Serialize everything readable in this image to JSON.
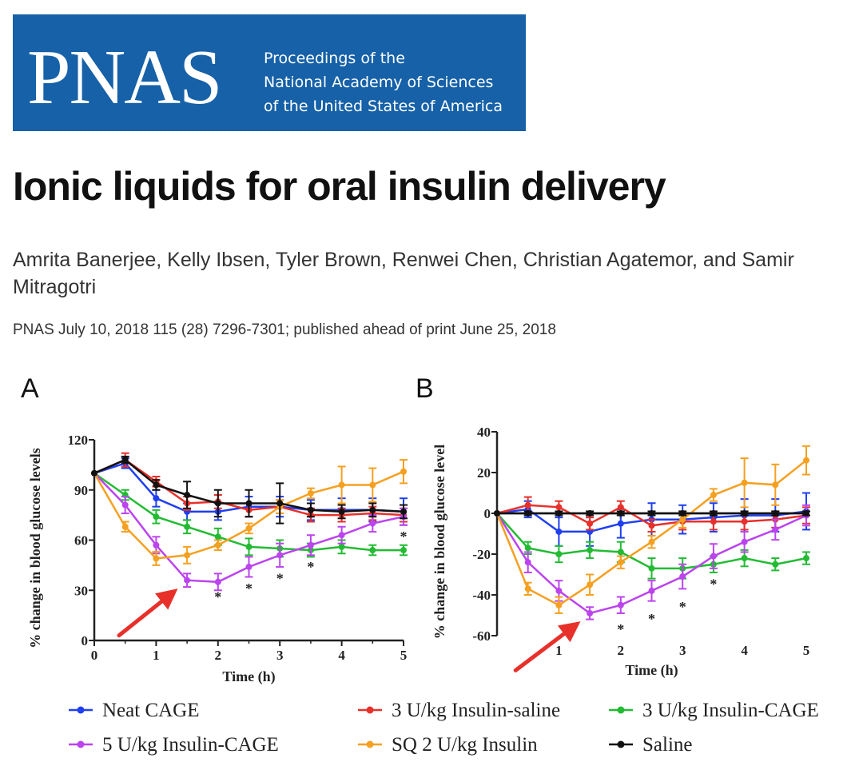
{
  "banner": {
    "logo": "PNAS",
    "tagline": [
      "Proceedings of the",
      "National Academy of Sciences",
      "of the United States of America"
    ],
    "background": "#1661a8"
  },
  "paper": {
    "title": "Ionic liquids for oral insulin delivery",
    "authors": "Amrita Banerjee, Kelly Ibsen, Tyler Brown, Renwei Chen, Christian Agatemor, and Samir Mitragotri",
    "citation": "PNAS July 10, 2018 115 (28) 7296-7301; published ahead of print June 25, 2018"
  },
  "chart_data": [
    {
      "type": "line",
      "panel": "A",
      "xlabel": "Time (h)",
      "ylabel": "% change in blood glucose levels",
      "xlim": [
        0,
        5
      ],
      "ylim": [
        0,
        120
      ],
      "xticks": [
        "0",
        "1",
        "2",
        "3",
        "4",
        "5"
      ],
      "yticks": [
        "0",
        "30",
        "60",
        "90",
        "120"
      ],
      "series": [
        {
          "name": "Neat CAGE",
          "color": "#1f3ff0",
          "x": [
            0,
            0.5,
            1,
            1.5,
            2,
            2.5,
            3,
            3.5,
            4,
            4.5,
            5
          ],
          "values": [
            100,
            106,
            85,
            77,
            77,
            80,
            80,
            78,
            78,
            78,
            77
          ],
          "errors": [
            0,
            3,
            5,
            5,
            5,
            6,
            6,
            6,
            7,
            7,
            8
          ]
        },
        {
          "name": "3 U/kg Insulin-saline",
          "color": "#e8302a",
          "x": [
            0,
            0.5,
            1,
            1.5,
            2,
            2.5,
            3,
            3.5,
            4,
            4.5,
            5
          ],
          "values": [
            100,
            108,
            95,
            82,
            83,
            78,
            80,
            75,
            75,
            76,
            75
          ],
          "errors": [
            0,
            4,
            3,
            4,
            4,
            4,
            4,
            4,
            4,
            4,
            4
          ]
        },
        {
          "name": "3 U/kg Insulin-CAGE",
          "color": "#22bb33",
          "x": [
            0,
            0.5,
            1,
            1.5,
            2,
            2.5,
            3,
            3.5,
            4,
            4.5,
            5
          ],
          "values": [
            100,
            87,
            74,
            68,
            62,
            56,
            55,
            54,
            56,
            54,
            54
          ],
          "errors": [
            0,
            3,
            4,
            4,
            5,
            5,
            5,
            4,
            4,
            3,
            3
          ]
        },
        {
          "name": "5 U/kg Insulin-CAGE",
          "color": "#bb44ee",
          "x": [
            0,
            0.5,
            1,
            1.5,
            2,
            2.5,
            3,
            3.5,
            4,
            4.5,
            5
          ],
          "values": [
            100,
            81,
            57,
            36,
            35,
            44,
            51,
            57,
            63,
            70,
            74
          ],
          "errors": [
            0,
            5,
            5,
            4,
            5,
            6,
            7,
            6,
            5,
            5,
            5
          ]
        },
        {
          "name": "SQ 2 U/kg Insulin",
          "color": "#f5a020",
          "x": [
            0,
            0.5,
            1,
            1.5,
            2,
            2.5,
            3,
            3.5,
            4,
            4.5,
            5
          ],
          "values": [
            100,
            68,
            49,
            51,
            57,
            67,
            80,
            88,
            93,
            93,
            101
          ],
          "errors": [
            0,
            3,
            4,
            5,
            3,
            3,
            4,
            3,
            11,
            10,
            7
          ]
        },
        {
          "name": "Saline",
          "color": "#111111",
          "x": [
            0,
            0.5,
            1,
            1.5,
            2,
            2.5,
            3,
            3.5,
            4,
            4.5,
            5
          ],
          "values": [
            100,
            108,
            93,
            87,
            82,
            82,
            82,
            78,
            77,
            78,
            77
          ],
          "errors": [
            0,
            2,
            3,
            8,
            8,
            8,
            12,
            4,
            4,
            4,
            4
          ]
        }
      ],
      "annotations": [
        {
          "text": "*",
          "x": 2,
          "y": 27
        },
        {
          "text": "*",
          "x": 2.5,
          "y": 32
        },
        {
          "text": "*",
          "x": 3,
          "y": 38
        },
        {
          "text": "*",
          "x": 3.5,
          "y": 45
        },
        {
          "text": "*",
          "x": 5,
          "y": 63
        }
      ],
      "arrow": {
        "from": [
          0.4,
          3
        ],
        "to": [
          1.35,
          31
        ],
        "color": "#e8302a"
      }
    },
    {
      "type": "line",
      "panel": "B",
      "xlabel": "Time (h)",
      "ylabel": "% change in blood glucose level",
      "xlim": [
        0,
        5
      ],
      "ylim": [
        -60,
        40
      ],
      "xticks": [
        "1",
        "2",
        "3",
        "4",
        "5"
      ],
      "yticks": [
        "-60",
        "-40",
        "-20",
        "0",
        "20",
        "40"
      ],
      "series": [
        {
          "name": "Neat CAGE",
          "color": "#1f3ff0",
          "x": [
            0,
            0.5,
            1,
            1.5,
            2,
            2.5,
            3,
            3.5,
            4,
            4.5,
            5
          ],
          "values": [
            0,
            2,
            -9,
            -9,
            -5,
            -3,
            -3,
            -2,
            -1,
            -1,
            1
          ],
          "errors": [
            0,
            4,
            7,
            7,
            7,
            8,
            7,
            7,
            8,
            8,
            9
          ]
        },
        {
          "name": "3 U/kg Insulin-saline",
          "color": "#e8302a",
          "x": [
            0,
            0.5,
            1,
            1.5,
            2,
            2.5,
            3,
            3.5,
            4,
            4.5,
            5
          ],
          "values": [
            0,
            4,
            3,
            -5,
            3,
            -6,
            -4,
            -4,
            -4,
            -3,
            -1
          ],
          "errors": [
            0,
            4,
            3,
            3,
            3,
            3,
            4,
            4,
            4,
            4,
            4
          ]
        },
        {
          "name": "3 U/kg Insulin-CAGE",
          "color": "#22bb33",
          "x": [
            0,
            0.5,
            1,
            1.5,
            2,
            2.5,
            3,
            3.5,
            4,
            4.5,
            5
          ],
          "values": [
            0,
            -17,
            -20,
            -18,
            -19,
            -27,
            -27,
            -25,
            -22,
            -25,
            -22
          ],
          "errors": [
            0,
            3,
            4,
            4,
            5,
            5,
            5,
            4,
            4,
            3,
            3
          ]
        },
        {
          "name": "5 U/kg Insulin-CAGE",
          "color": "#bb44ee",
          "x": [
            0,
            0.5,
            1,
            1.5,
            2,
            2.5,
            3,
            3.5,
            4,
            4.5,
            5
          ],
          "values": [
            0,
            -24,
            -38,
            -49,
            -45,
            -38,
            -31,
            -21,
            -14,
            -8,
            -1
          ],
          "errors": [
            0,
            5,
            5,
            3,
            4,
            5,
            6,
            6,
            5,
            5,
            5
          ]
        },
        {
          "name": "SQ 2 U/kg Insulin",
          "color": "#f5a020",
          "x": [
            0,
            0.5,
            1,
            1.5,
            2,
            2.5,
            3,
            3.5,
            4,
            4.5,
            5
          ],
          "values": [
            0,
            -37,
            -45,
            -35,
            -24,
            -14,
            -3,
            9,
            15,
            14,
            26
          ],
          "errors": [
            0,
            3,
            4,
            5,
            3,
            3,
            4,
            3,
            12,
            10,
            7
          ]
        },
        {
          "name": "Saline",
          "color": "#111111",
          "x": [
            0,
            0.5,
            1,
            1.5,
            2,
            2.5,
            3,
            3.5,
            4,
            4.5,
            5
          ],
          "values": [
            0,
            0,
            0,
            0,
            0,
            0,
            0,
            0,
            0,
            0,
            0
          ],
          "errors": [
            0,
            1,
            1,
            1,
            1,
            1,
            1,
            1,
            1,
            1,
            1
          ]
        }
      ],
      "annotations": [
        {
          "text": "*",
          "x": 2,
          "y": -56
        },
        {
          "text": "*",
          "x": 2.5,
          "y": -51
        },
        {
          "text": "*",
          "x": 3,
          "y": -45
        },
        {
          "text": "*",
          "x": 3.5,
          "y": -34
        }
      ],
      "arrow": {
        "from": [
          0.3,
          -77
        ],
        "to": [
          1.35,
          -53
        ],
        "color": "#e8302a"
      }
    }
  ],
  "legend": [
    {
      "label": "Neat CAGE",
      "color": "#1f3ff0"
    },
    {
      "label": "3 U/kg Insulin-saline",
      "color": "#e8302a"
    },
    {
      "label": "3 U/kg Insulin-CAGE",
      "color": "#22bb33"
    },
    {
      "label": "5 U/kg Insulin-CAGE",
      "color": "#bb44ee"
    },
    {
      "label": "SQ 2 U/kg Insulin",
      "color": "#f5a020"
    },
    {
      "label": "Saline",
      "color": "#111111"
    }
  ]
}
